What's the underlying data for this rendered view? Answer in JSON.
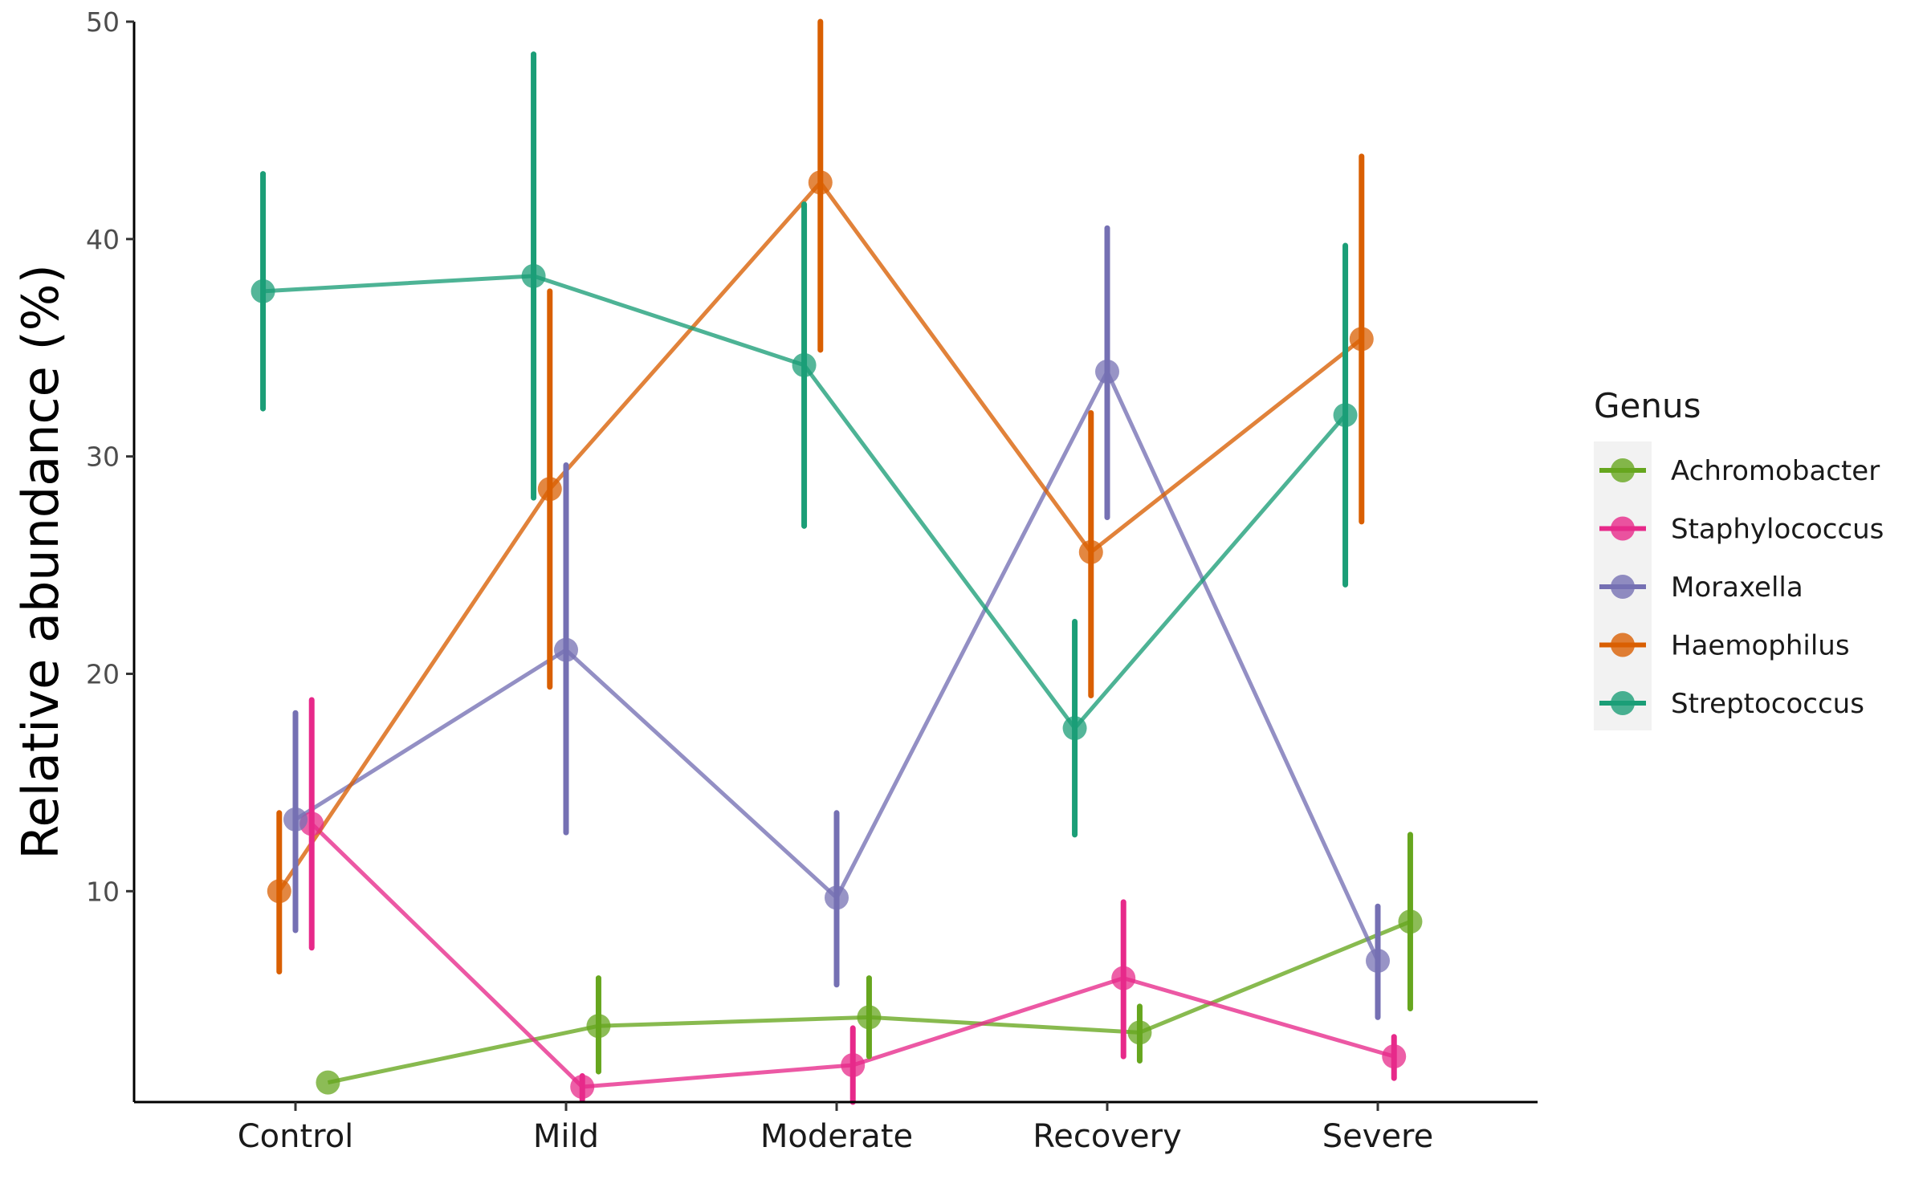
{
  "chart_data": {
    "type": "line",
    "categories": [
      "Control",
      "Mild",
      "Moderate",
      "Recovery",
      "Severe"
    ],
    "xlabel": "",
    "ylabel": "Relative abundance (%)",
    "ylim": [
      0.3,
      50
    ],
    "yticks": [
      10,
      20,
      30,
      40,
      50
    ],
    "grid": false,
    "legend": {
      "title": "Genus",
      "position": "right"
    },
    "series": [
      {
        "name": "Achromobacter",
        "color": "#66A61E",
        "offset": 0.12,
        "values": [
          1.2,
          3.8,
          4.2,
          3.5,
          8.6
        ],
        "lower": [
          null,
          1.7,
          2.4,
          2.2,
          4.6
        ],
        "upper": [
          null,
          6.0,
          6.0,
          4.7,
          12.6
        ]
      },
      {
        "name": "Staphylococcus",
        "color": "#E7298A",
        "offset": 0.06,
        "values": [
          13.1,
          1.0,
          2.0,
          6.0,
          2.4
        ],
        "lower": [
          7.4,
          0.4,
          0.3,
          2.4,
          1.4
        ],
        "upper": [
          18.8,
          1.5,
          3.7,
          9.5,
          3.3
        ]
      },
      {
        "name": "Moraxella",
        "color": "#7570B3",
        "offset": 0.0,
        "values": [
          13.3,
          21.1,
          9.7,
          33.9,
          6.8
        ],
        "lower": [
          8.2,
          12.7,
          5.7,
          27.2,
          4.2
        ],
        "upper": [
          18.2,
          29.6,
          13.6,
          40.5,
          9.3
        ]
      },
      {
        "name": "Haemophilus",
        "color": "#D95F02",
        "offset": -0.06,
        "values": [
          10.0,
          28.5,
          42.6,
          25.6,
          35.4
        ],
        "lower": [
          6.3,
          19.4,
          34.9,
          19.0,
          27.0
        ],
        "upper": [
          13.6,
          37.6,
          50.3,
          32.0,
          43.8
        ]
      },
      {
        "name": "Streptococcus",
        "color": "#1B9E77",
        "offset": -0.12,
        "values": [
          37.6,
          38.3,
          34.2,
          17.5,
          31.9
        ],
        "lower": [
          32.2,
          28.1,
          26.8,
          12.6,
          24.1
        ],
        "upper": [
          43.0,
          48.5,
          41.6,
          22.4,
          39.7
        ]
      }
    ]
  }
}
